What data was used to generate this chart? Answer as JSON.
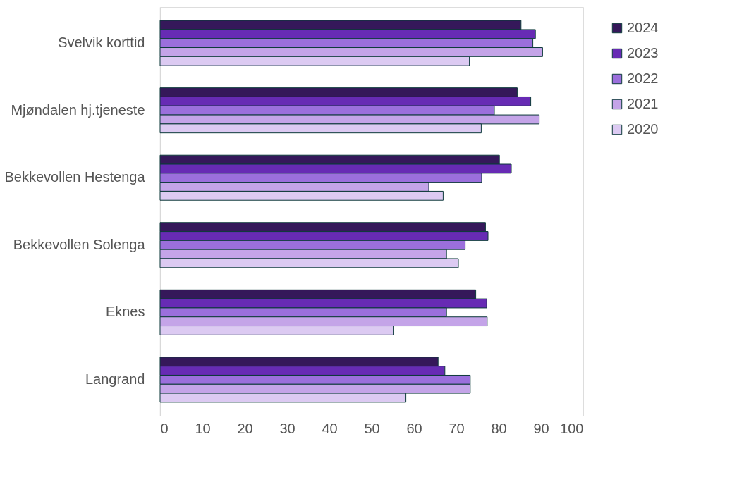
{
  "chart_data": {
    "type": "bar",
    "orientation": "horizontal",
    "categories": [
      "Svelvik korttid",
      "Mjøndalen hj.tjeneste",
      "Bekkevollen Hestenga",
      "Bekkevollen Solenga",
      "Eknes",
      "Langrand"
    ],
    "series": [
      {
        "name": "2024",
        "color": "#35185a",
        "values": [
          85.3,
          84.4,
          80.2,
          76.9,
          74.6,
          65.7
        ]
      },
      {
        "name": "2023",
        "color": "#672bb4",
        "values": [
          88.7,
          87.6,
          83.0,
          77.5,
          77.2,
          67.3
        ]
      },
      {
        "name": "2022",
        "color": "#9b6fdc",
        "values": [
          88.1,
          79.0,
          76.0,
          72.1,
          67.7,
          73.3
        ]
      },
      {
        "name": "2021",
        "color": "#c4a4e8",
        "values": [
          90.4,
          89.6,
          63.5,
          67.7,
          77.3,
          73.3
        ]
      },
      {
        "name": "2020",
        "color": "#dccaf2",
        "values": [
          73.1,
          75.9,
          66.9,
          70.5,
          55.1,
          58.1
        ]
      }
    ],
    "xlim": [
      0,
      100
    ],
    "xticks": [
      0,
      10,
      20,
      30,
      40,
      50,
      60,
      70,
      80,
      90,
      100
    ],
    "grid": false,
    "legend": "right"
  }
}
